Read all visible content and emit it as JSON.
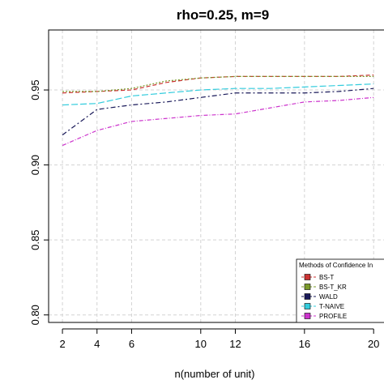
{
  "chart_data": {
    "type": "line",
    "title": "rho=0.25, m=9",
    "xlabel": "n(number of unit)",
    "ylabel": "",
    "x": [
      2,
      4,
      6,
      8,
      10,
      12,
      14,
      16,
      18,
      20
    ],
    "xticks": [
      2,
      4,
      6,
      10,
      12,
      16,
      20
    ],
    "xlim": [
      1.2,
      20.6
    ],
    "ylim": [
      0.795,
      0.99
    ],
    "yticks": [
      "0.80",
      "0.85",
      "0.90",
      "0.95"
    ],
    "grid": true,
    "legend": {
      "title": "Methods of Confidence In",
      "placement": "bottom-right"
    },
    "series": [
      {
        "name": "BS-T",
        "color": "#cc3333",
        "values": [
          0.948,
          0.949,
          0.95,
          0.955,
          0.958,
          0.959,
          0.959,
          0.959,
          0.959,
          0.96
        ]
      },
      {
        "name": "BS-T_KR",
        "color": "#7a9a2a",
        "values": [
          0.949,
          0.949,
          0.951,
          0.956,
          0.958,
          0.959,
          0.959,
          0.959,
          0.959,
          0.959
        ]
      },
      {
        "name": "WALD",
        "color": "#1a1a5a",
        "values": [
          0.92,
          0.937,
          0.94,
          0.942,
          0.945,
          0.948,
          0.948,
          0.948,
          0.949,
          0.951
        ]
      },
      {
        "name": "T-NAIVE",
        "color": "#33ccdd",
        "values": [
          0.94,
          0.941,
          0.946,
          0.948,
          0.95,
          0.951,
          0.951,
          0.952,
          0.953,
          0.954
        ]
      },
      {
        "name": "PROFILE",
        "color": "#cc33cc",
        "values": [
          0.913,
          0.923,
          0.929,
          0.931,
          0.933,
          0.934,
          0.938,
          0.942,
          0.943,
          0.945
        ]
      }
    ]
  }
}
